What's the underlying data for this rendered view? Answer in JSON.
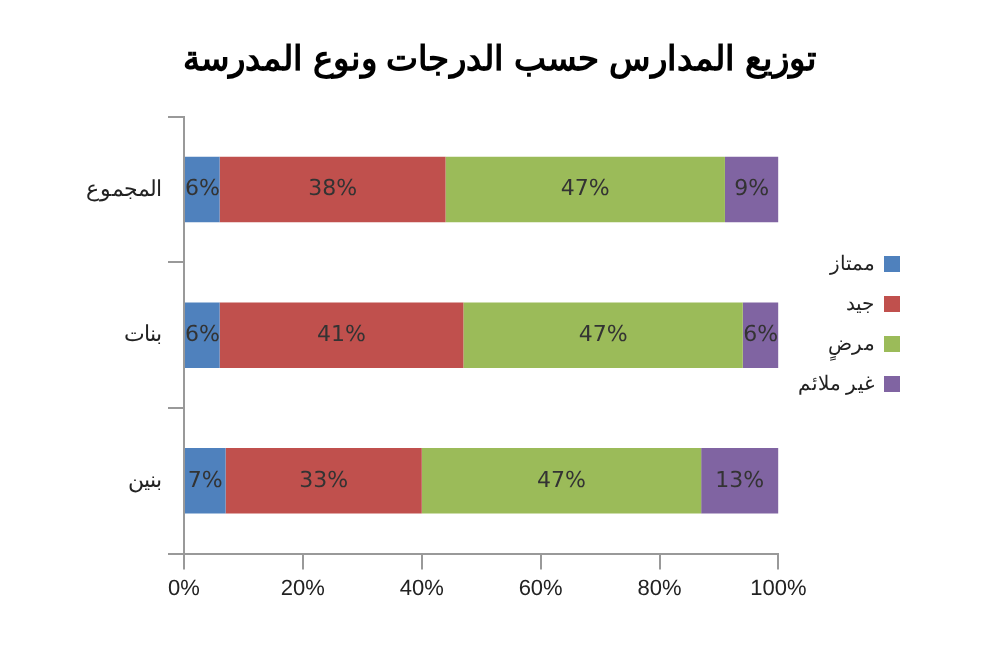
{
  "chart_data": {
    "type": "bar",
    "orientation": "horizontal",
    "stacked": true,
    "title": "توزيع المدارس حسب الدرجات ونوع المدرسة",
    "categories": [
      "المجموع",
      "بنات",
      "بنين"
    ],
    "series": [
      {
        "name": "ممتاز",
        "color": "#4f81bd",
        "values": [
          6,
          6,
          7
        ],
        "value_labels": [
          "6%",
          "6%",
          "7%"
        ]
      },
      {
        "name": "جيد",
        "color": "#c0504d",
        "values": [
          38,
          41,
          33
        ],
        "value_labels": [
          "38%",
          "41%",
          "33%"
        ]
      },
      {
        "name": "مرضٍ",
        "color": "#9bbb59",
        "values": [
          47,
          47,
          47
        ],
        "value_labels": [
          "47%",
          "47%",
          "47%"
        ]
      },
      {
        "name": "غير ملائم",
        "color": "#8064a2",
        "values": [
          9,
          6,
          13
        ],
        "value_labels": [
          "9%",
          "6%",
          "13%"
        ]
      }
    ],
    "xlim": [
      0,
      100
    ],
    "xticks": [
      {
        "value": 0,
        "label": "0%"
      },
      {
        "value": 20,
        "label": "20%"
      },
      {
        "value": 40,
        "label": "40%"
      },
      {
        "value": 60,
        "label": "60%"
      },
      {
        "value": 80,
        "label": "80%"
      },
      {
        "value": 100,
        "label": "100%"
      }
    ],
    "grid": false,
    "legend": "right"
  }
}
